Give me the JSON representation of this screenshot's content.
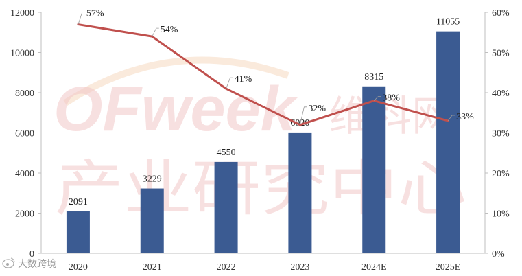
{
  "chart_data": {
    "type": "bar",
    "categories": [
      "2020",
      "2021",
      "2022",
      "2023",
      "2024E",
      "2025E"
    ],
    "series": [
      {
        "type": "bar",
        "axis": "left",
        "values": [
          2091,
          3229,
          4550,
          6020,
          8315,
          11055
        ],
        "color": "#3b5b92"
      },
      {
        "type": "line",
        "axis": "right",
        "values": [
          57,
          54,
          41,
          32,
          38,
          33
        ],
        "value_labels": [
          "57%",
          "54%",
          "41%",
          "32%",
          "38%",
          "33%"
        ],
        "color": "#c0504d"
      }
    ],
    "y_left": {
      "min": 0,
      "max": 12000,
      "ticks": [
        "0",
        "2000",
        "4000",
        "6000",
        "8000",
        "10000",
        "12000"
      ]
    },
    "y_right": {
      "min": 0,
      "max": 60,
      "ticks": [
        "0%",
        "10%",
        "20%",
        "30%",
        "40%",
        "50%",
        "60%"
      ]
    },
    "grid": false,
    "legend": "none"
  },
  "watermark": {
    "brand": "OFweek",
    "brand_cn": "维科网",
    "center": "产业研究中心"
  },
  "source_badge": {
    "icon": "weibo-icon",
    "label": "大数跨境"
  },
  "colors": {
    "bar": "#3b5b92",
    "line": "#c0504d",
    "axis": "#bfbfbf",
    "watermark": "#f2c7c7"
  }
}
